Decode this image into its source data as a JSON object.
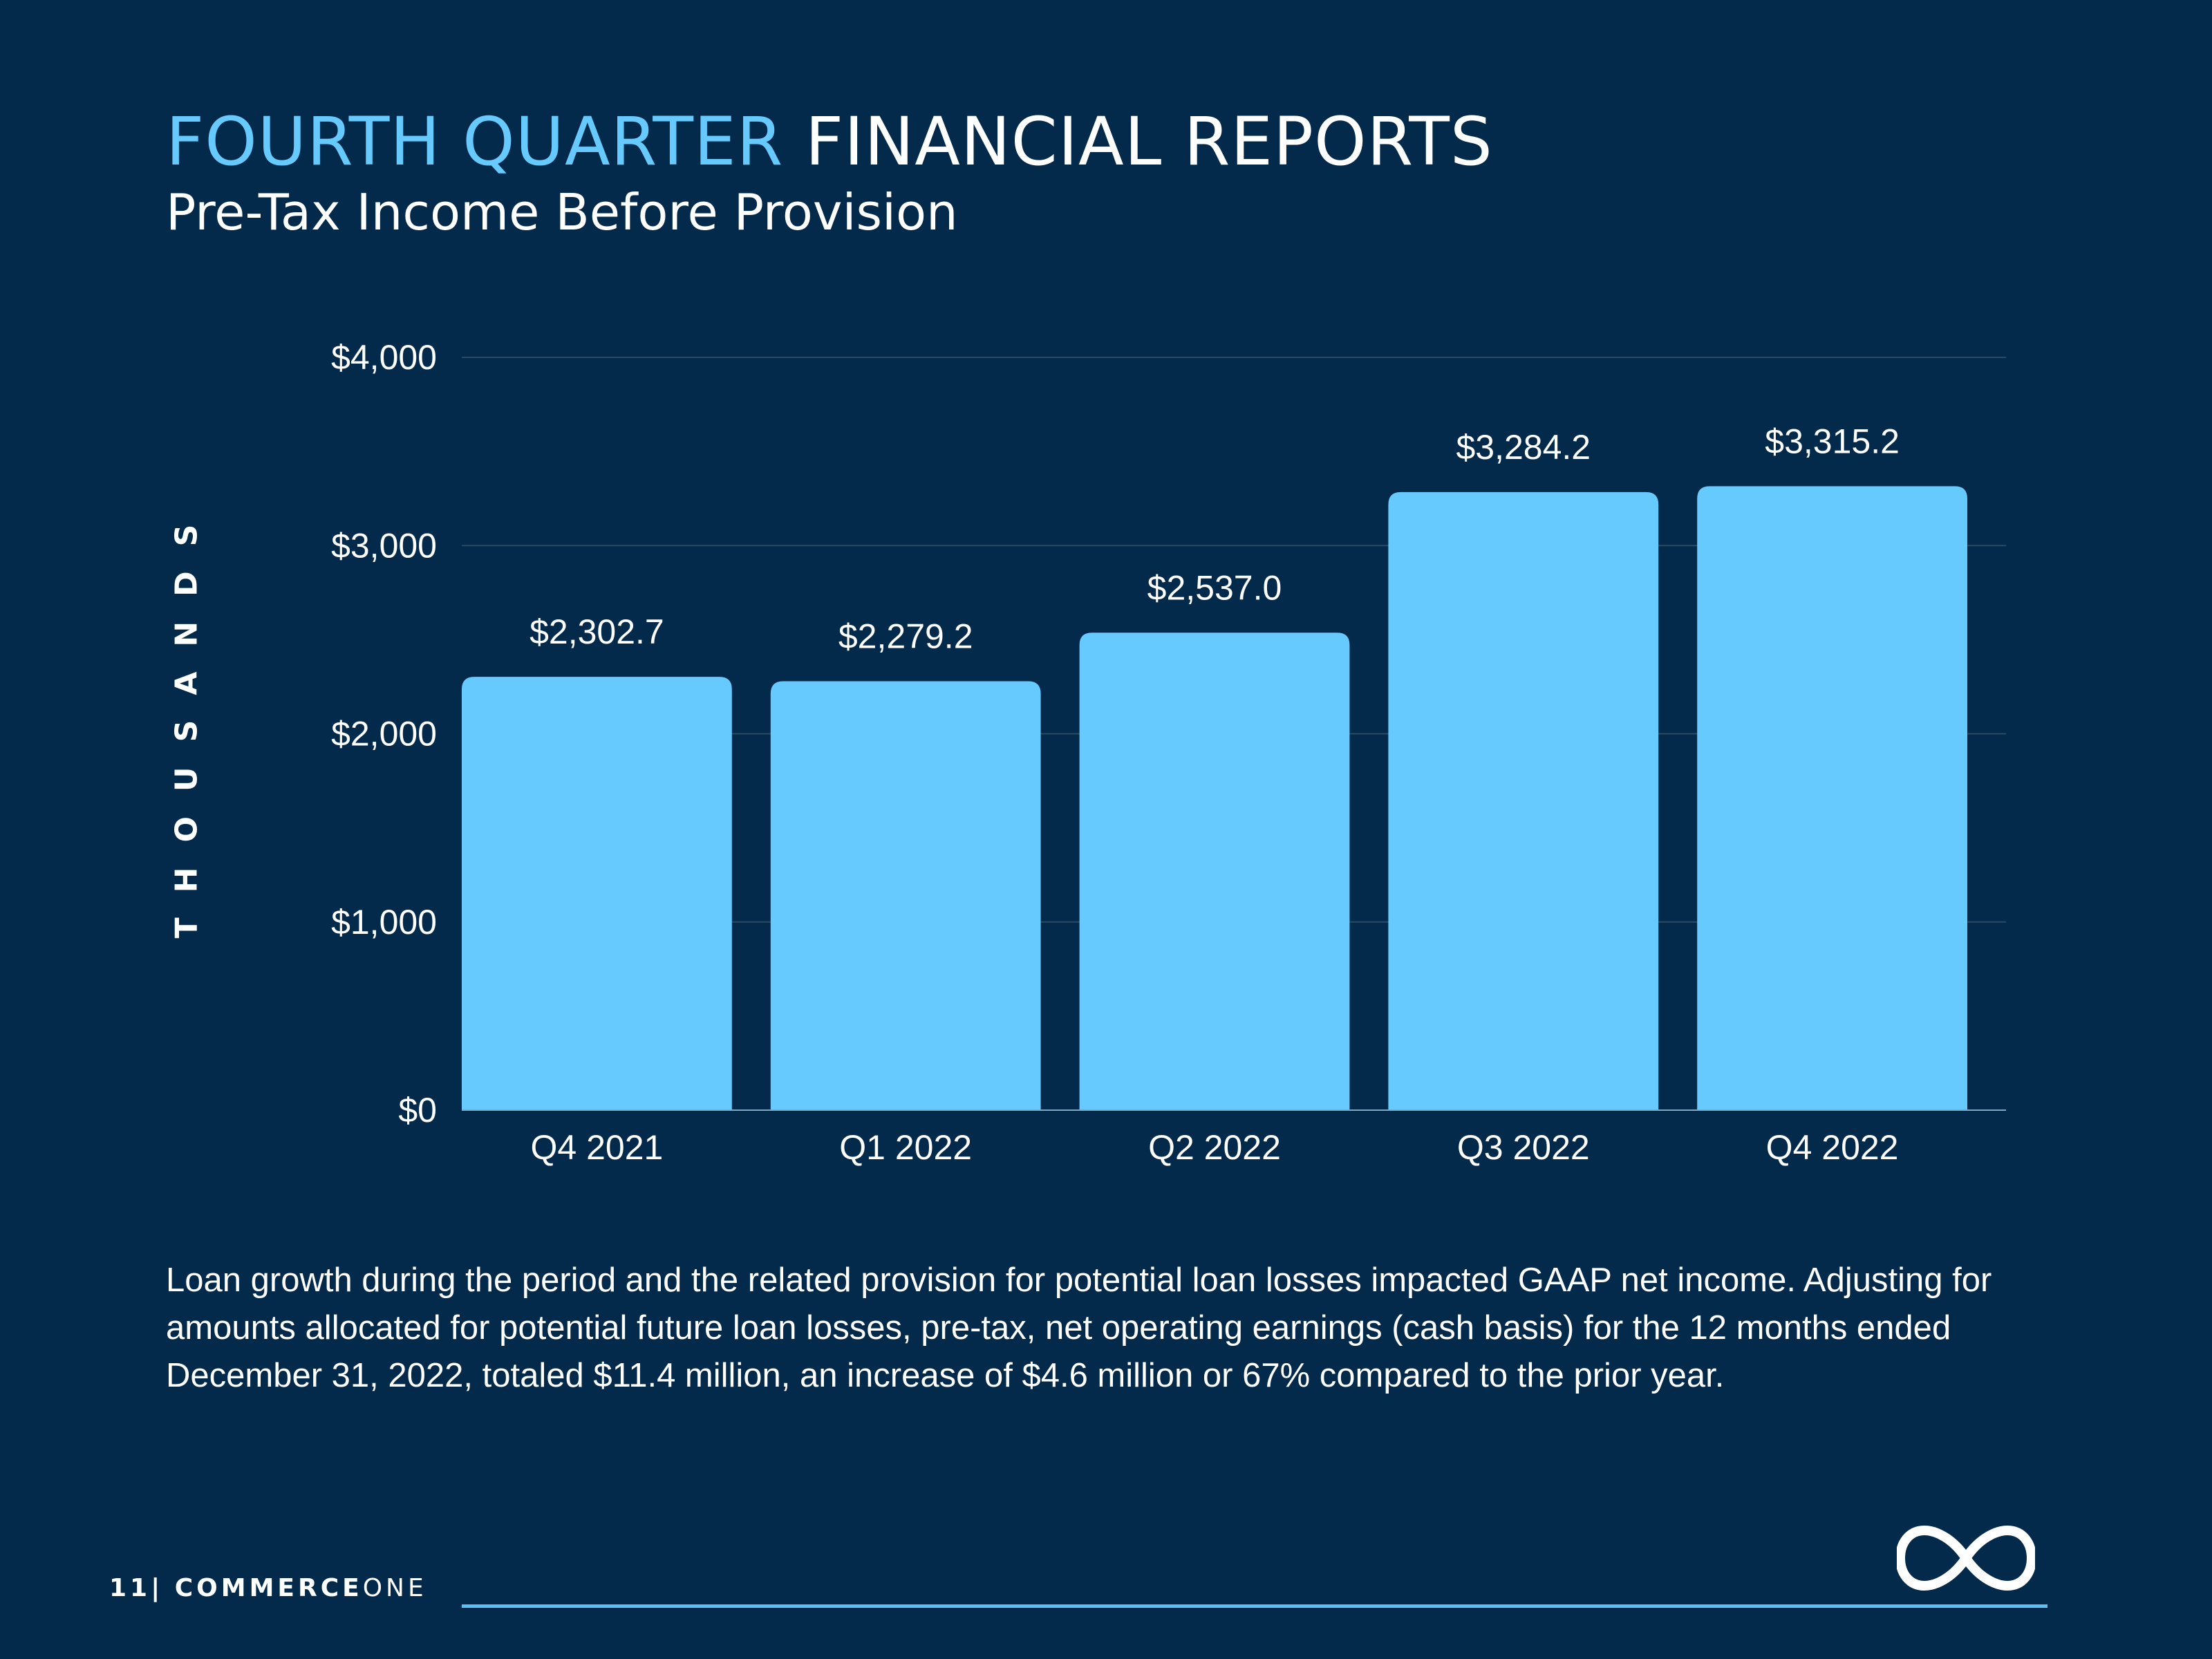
{
  "header": {
    "title_accent": "FOURTH QUARTER",
    "title_rest": "FINANCIAL REPORTS",
    "subtitle": "Pre-Tax Income Before Provision"
  },
  "chart_data": {
    "type": "bar",
    "title": "",
    "ylabel": "THOUSANDS",
    "xlabel": "",
    "categories": [
      "Q4 2021",
      "Q1 2022",
      "Q2 2022",
      "Q3 2022",
      "Q4 2022"
    ],
    "values": [
      2302.7,
      2279.2,
      2537.0,
      3284.2,
      3315.2
    ],
    "data_labels": [
      "$2,302.7",
      "$2,279.2",
      "$2,537.0",
      "$3,284.2",
      "$3,315.2"
    ],
    "ylim": [
      0,
      4000
    ],
    "yticks": [
      0,
      1000,
      2000,
      3000,
      4000
    ],
    "ytick_labels": [
      "$0",
      "$1,000",
      "$2,000",
      "$3,000",
      "$4,000"
    ],
    "grid": true,
    "legend": "none",
    "bar_color": "#66caff",
    "grid_color": "#2b4a64"
  },
  "body": {
    "paragraph": "Loan growth during the period and the related provision for potential loan losses impacted GAAP net income. Adjusting for amounts allocated for potential future loan losses, pre-tax, net operating earnings (cash basis) for the 12 months ended December 31, 2022, totaled $11.4 million, an increase of $4.6 million or 67% compared to the prior year."
  },
  "footer": {
    "page_number": "11",
    "separator": "|",
    "brand_bold": "COMMERCE",
    "brand_light": "ONE",
    "logo_icon": "infinity-logo-icon"
  },
  "colors": {
    "background": "#032a4a",
    "accent": "#66caff",
    "text": "#ffffff"
  }
}
